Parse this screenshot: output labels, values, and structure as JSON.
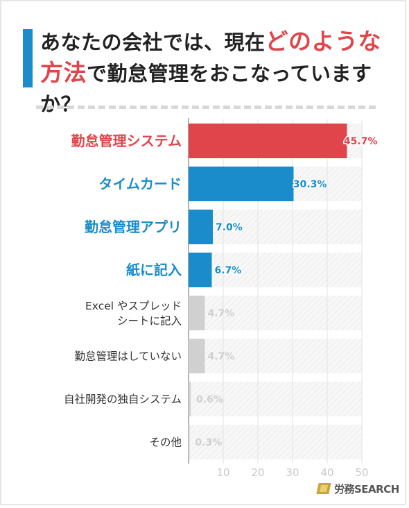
{
  "title": {
    "part1": "あなたの会社では、現在",
    "highlight1": "どのような",
    "highlight2": "方法",
    "part2": "で勤怠管理をおこなっていますか？"
  },
  "brand": {
    "logo_text": "労務SEARCH"
  },
  "colors": {
    "highlight_red": "#e0454b",
    "accent_blue": "#1a8ccc",
    "bar_gray": "#d0d0d0",
    "label_dark": "#333333"
  },
  "chart_data": {
    "type": "bar",
    "orientation": "horizontal",
    "categories": [
      "勤怠管理システム",
      "タイムカード",
      "勤怠管理アプリ",
      "紙に記入",
      "Excel やスプレッド\nシートに記入",
      "勤怠管理はしていない",
      "自社開発の独自システム",
      "その他"
    ],
    "values": [
      45.7,
      30.3,
      7.0,
      6.7,
      4.7,
      4.7,
      0.6,
      0.3
    ],
    "value_labels": [
      "45.7%",
      "30.3%",
      "7.0%",
      "6.7%",
      "4.7%",
      "4.7%",
      "0.6%",
      "0.3%"
    ],
    "bar_colors": [
      "#e0454b",
      "#1a8ccc",
      "#1a8ccc",
      "#1a8ccc",
      "#d0d0d0",
      "#d0d0d0",
      "#d0d0d0",
      "#d0d0d0"
    ],
    "xlim": [
      0,
      50
    ],
    "xticks": [
      10,
      20,
      30,
      40,
      50
    ],
    "grid": true
  }
}
